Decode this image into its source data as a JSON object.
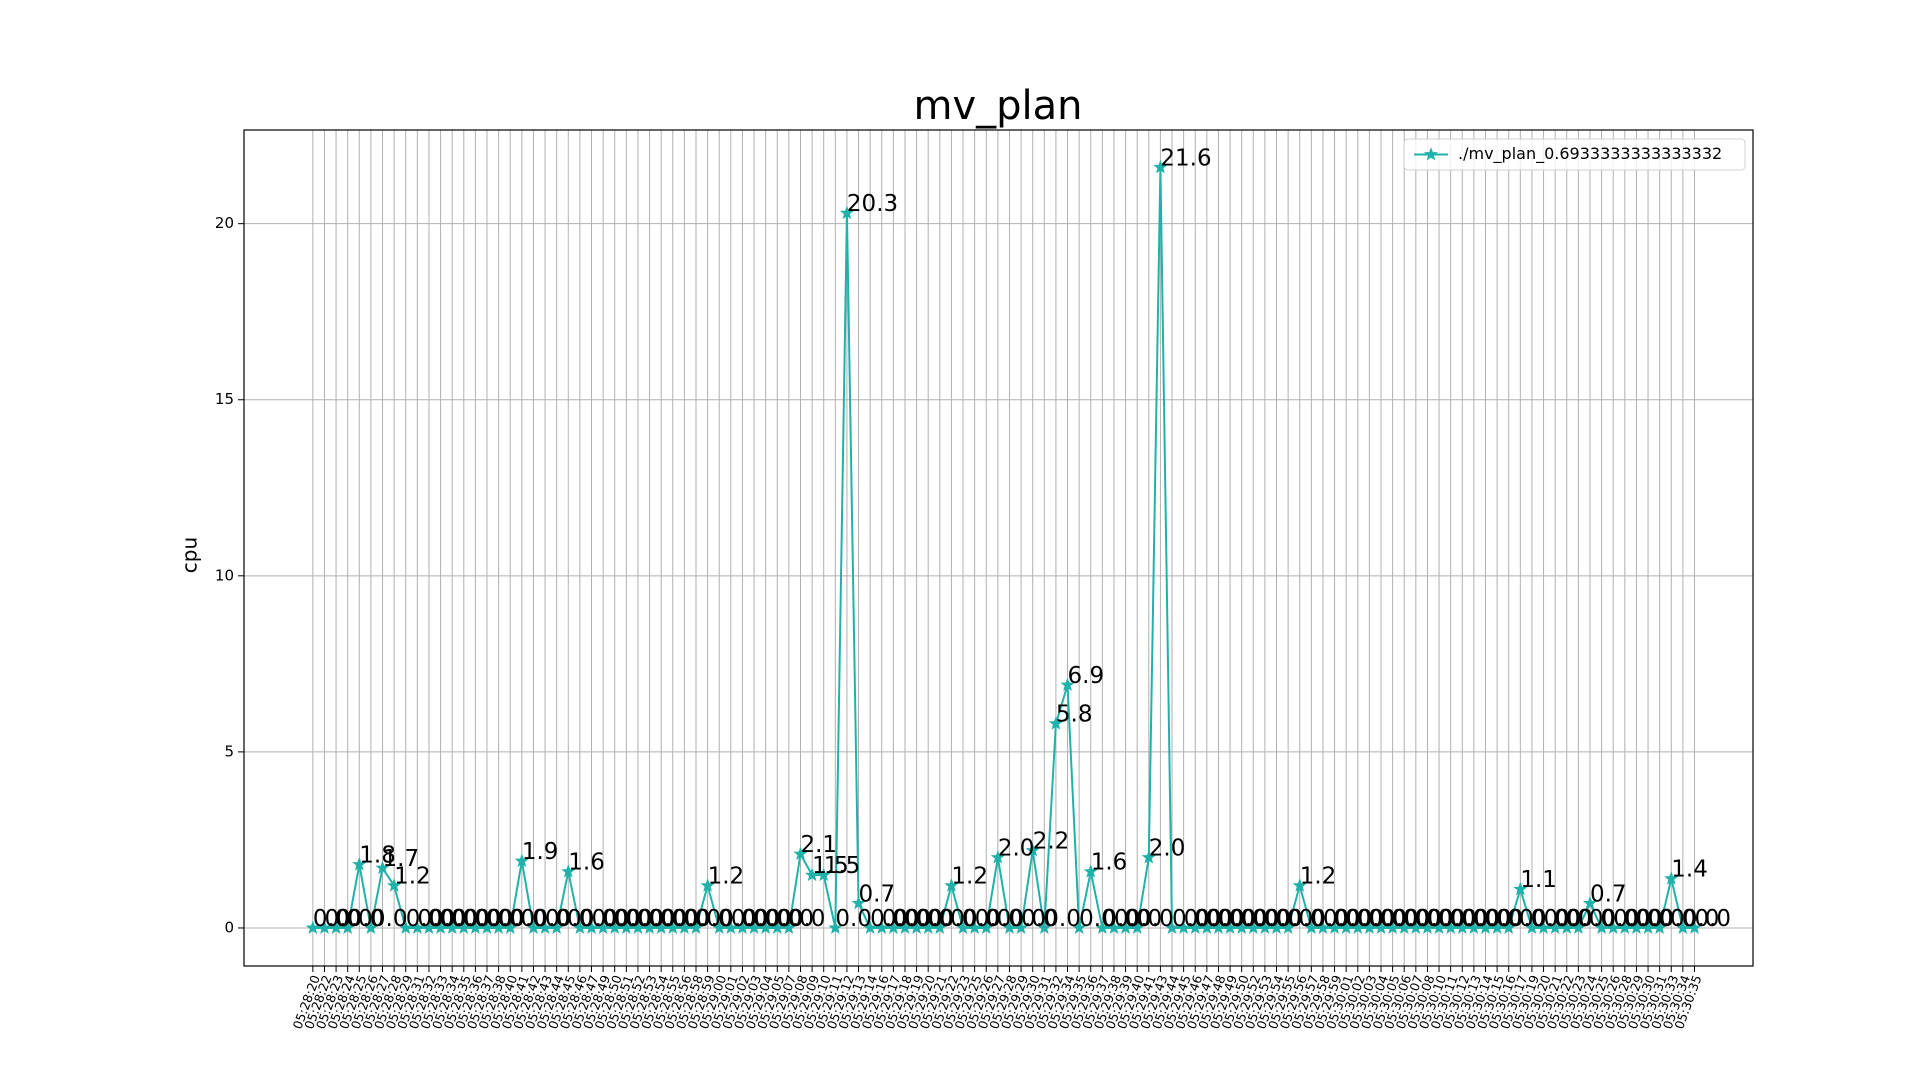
{
  "chart_data": {
    "type": "line",
    "title": "mv_plan",
    "ylabel": "cpu",
    "categories": [
      "05:28:20",
      "05:28:22",
      "05:28:23",
      "05:28:24",
      "05:28:25",
      "05:28:26",
      "05:28:27",
      "05:28:28",
      "05:28:29",
      "05:28:31",
      "05:28:32",
      "05:28:33",
      "05:28:34",
      "05:28:35",
      "05:28:36",
      "05:28:37",
      "05:28:38",
      "05:28:40",
      "05:28:41",
      "05:28:42",
      "05:28:43",
      "05:28:44",
      "05:28:45",
      "05:28:46",
      "05:28:47",
      "05:28:49",
      "05:28:50",
      "05:28:51",
      "05:28:52",
      "05:28:53",
      "05:28:54",
      "05:28:55",
      "05:28:56",
      "05:28:58",
      "05:28:59",
      "05:29:00",
      "05:29:01",
      "05:29:02",
      "05:29:03",
      "05:29:04",
      "05:29:05",
      "05:29:07",
      "05:29:08",
      "05:29:09",
      "05:29:10",
      "05:29:11",
      "05:29:12",
      "05:29:13",
      "05:29:14",
      "05:29:16",
      "05:29:17",
      "05:29:18",
      "05:29:19",
      "05:29:20",
      "05:29:21",
      "05:29:22",
      "05:29:23",
      "05:29:25",
      "05:29:26",
      "05:29:27",
      "05:29:28",
      "05:29:29",
      "05:29:30",
      "05:29:31",
      "05:29:32",
      "05:29:34",
      "05:29:35",
      "05:29:36",
      "05:29:37",
      "05:29:38",
      "05:29:39",
      "05:29:40",
      "05:29:41",
      "05:29:43",
      "05:29:44",
      "05:29:45",
      "05:29:46",
      "05:29:47",
      "05:29:48",
      "05:29:49",
      "05:29:50",
      "05:29:52",
      "05:29:53",
      "05:29:54",
      "05:29:55",
      "05:29:56",
      "05:29:57",
      "05:29:58",
      "05:29:59",
      "05:30:01",
      "05:30:02",
      "05:30:03",
      "05:30:04",
      "05:30:05",
      "05:30:06",
      "05:30:07",
      "05:30:08",
      "05:30:10",
      "05:30:11",
      "05:30:12",
      "05:30:13",
      "05:30:14",
      "05:30:15",
      "05:30:16",
      "05:30:17",
      "05:30:19",
      "05:30:20",
      "05:30:21",
      "05:30:22",
      "05:30:23",
      "05:30:24",
      "05:30:25",
      "05:30:26",
      "05:30:28",
      "05:30:29",
      "05:30:30",
      "05:30:31",
      "05:30:33",
      "05:30:34",
      "05:30:35"
    ],
    "series": [
      {
        "name": "./mv_plan_0.6933333333333332",
        "color": "#20b2aa",
        "values": [
          0,
          0,
          0,
          0,
          1.8,
          0,
          1.7,
          1.2,
          0,
          0,
          0,
          0,
          0,
          0,
          0,
          0,
          0,
          0,
          1.9,
          0,
          0,
          0,
          1.6,
          0,
          0,
          0,
          0,
          0,
          0,
          0,
          0,
          0,
          0,
          0,
          1.2,
          0,
          0,
          0,
          0,
          0,
          0,
          0,
          2.1,
          1.5,
          1.5,
          0,
          20.3,
          0.7,
          0,
          0,
          0,
          0,
          0,
          0,
          0,
          1.2,
          0,
          0,
          0,
          2.0,
          0,
          0,
          2.2,
          0,
          5.8,
          6.9,
          0,
          1.6,
          0,
          0,
          0,
          0,
          2.0,
          21.6,
          0,
          0,
          0,
          0,
          0,
          0,
          0,
          0,
          0,
          0,
          0,
          1.2,
          0,
          0,
          0,
          0,
          0,
          0,
          0,
          0,
          0,
          0,
          0,
          0,
          0,
          0,
          0,
          0,
          0,
          0,
          1.1,
          0,
          0,
          0,
          0,
          0,
          0.7,
          0,
          0,
          0,
          0,
          0,
          0,
          1.4,
          0,
          0
        ],
        "value_labels": [
          "0.0",
          "0.0",
          "0.0",
          "0.0",
          "1.8",
          "0.0",
          "1.7",
          "1.2",
          "0.0",
          "0.0",
          "0.0",
          "0.0",
          "0.0",
          "0.0",
          "0.0",
          "0.0",
          "0.0",
          "0.0",
          "1.9",
          "0.0",
          "0.0",
          "0.0",
          "1.6",
          "0.0",
          "0.0",
          "0.0",
          "0.0",
          "0.0",
          "0.0",
          "0.0",
          "0.0",
          "0.0",
          "0.0",
          "0.0",
          "1.2",
          "0.0",
          "0.0",
          "0.0",
          "0.0",
          "0.0",
          "0.0",
          "0.0",
          "2.1",
          "1.5",
          "1.5",
          "0.0",
          "20.3",
          "0.7",
          "0.0",
          "0.0",
          "0.0",
          "0.0",
          "0.0",
          "0.0",
          "0.0",
          "1.2",
          "0.0",
          "0.0",
          "0.0",
          "2.0",
          "0.0",
          "0.0",
          "2.2",
          "0.0",
          "5.8",
          "6.9",
          "0.0",
          "1.6",
          "0.0",
          "0.0",
          "0.0",
          "0.0",
          "2.0",
          "21.6",
          "0.0",
          "0.0",
          "0.0",
          "0.0",
          "0.0",
          "0.0",
          "0.0",
          "0.0",
          "0.0",
          "0.0",
          "0.0",
          "1.2",
          "0.0",
          "0.0",
          "0.0",
          "0.0",
          "0.0",
          "0.0",
          "0.0",
          "0.0",
          "0.0",
          "0.0",
          "0.0",
          "0.0",
          "0.0",
          "0.0",
          "0.0",
          "0.0",
          "0.0",
          "0.0",
          "1.1",
          "0.0",
          "0.0",
          "0.0",
          "0.0",
          "0.0",
          "0.7",
          "0.0",
          "0.0",
          "0.0",
          "0.0",
          "0.0",
          "0.0",
          "1.4",
          "0.0",
          "0.0"
        ]
      }
    ],
    "ylim": [
      -1.08,
      22.66
    ],
    "yticks": [
      0,
      5,
      10,
      15,
      20
    ],
    "grid": true,
    "marker": "star",
    "legend": "upper right"
  }
}
